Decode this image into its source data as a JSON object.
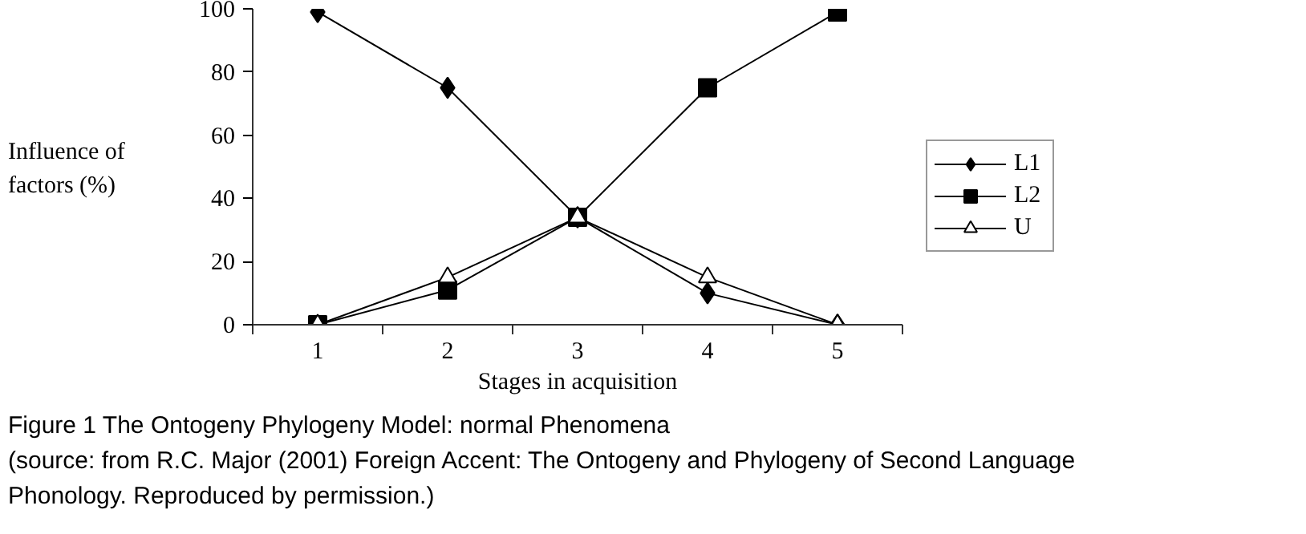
{
  "chart_data": {
    "type": "line",
    "xlabel": "Stages in acquisition",
    "ylabel": "Influence of\nfactors (%)",
    "categories": [
      "1",
      "2",
      "3",
      "4",
      "5"
    ],
    "series": [
      {
        "name": "L1",
        "color": "#000000",
        "marker": "diamond",
        "values": [
          99,
          75,
          34,
          10,
          0
        ]
      },
      {
        "name": "L2",
        "color": "#000000",
        "marker": "square",
        "values": [
          0,
          11,
          34,
          75,
          99
        ]
      },
      {
        "name": "U",
        "color": "#000000",
        "marker": "triangle",
        "values": [
          0,
          15,
          34,
          15,
          0
        ]
      }
    ],
    "ylim": [
      0,
      100
    ],
    "yticks": [
      0,
      20,
      40,
      60,
      80,
      100
    ],
    "grid": false,
    "legend": "right",
    "line_style": "solid",
    "annotations": [
      "Figure 1  The Ontogeny Phylogeny Model: normal Phenomena",
      "(source: from R.C. Major (2001) Foreign Accent: The Ontogeny and Phylogeny of Second Language",
      "Phonology. Reproduced by permission.)"
    ]
  }
}
